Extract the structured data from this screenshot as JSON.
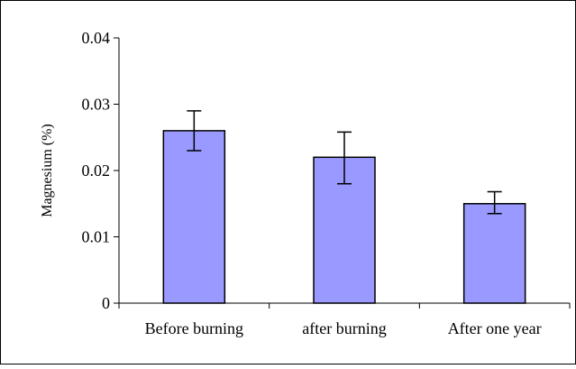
{
  "chart_data": {
    "type": "bar",
    "title": "",
    "xlabel": "",
    "ylabel": "Magnesium (%)",
    "categories": [
      "Before burning",
      "after burning",
      "After one year"
    ],
    "values": [
      0.026,
      0.022,
      0.015
    ],
    "error_low": [
      0.023,
      0.018,
      0.0135
    ],
    "error_high": [
      0.029,
      0.0258,
      0.0168
    ],
    "ylim": [
      0,
      0.04
    ],
    "yticks": [
      0,
      0.01,
      0.02,
      0.03,
      0.04
    ],
    "ytick_labels": [
      "0",
      "0.01",
      "0.02",
      "0.03",
      "0.04"
    ],
    "grid": false,
    "legend": "none",
    "colors": {
      "bar_fill": "#9999ff",
      "bar_stroke": "#000000",
      "axis": "#000000",
      "frame": "#000000"
    }
  }
}
